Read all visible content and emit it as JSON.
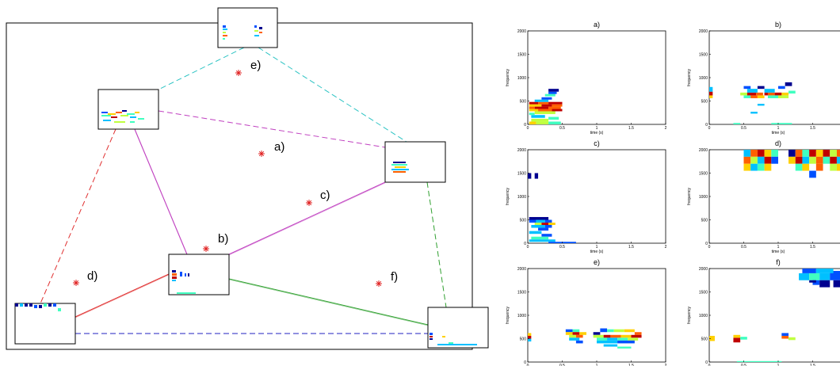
{
  "network": {
    "nodes": [
      {
        "id": "top"
      },
      {
        "id": "upper-left"
      },
      {
        "id": "right"
      },
      {
        "id": "center"
      },
      {
        "id": "lower-left"
      },
      {
        "id": "lower-right"
      }
    ],
    "edges": [
      {
        "from": "top",
        "to": "upper-left",
        "color": "#2ec4c4",
        "style": "dashed"
      },
      {
        "from": "top",
        "to": "right",
        "color": "#2ec4c4",
        "style": "dashed"
      },
      {
        "from": "upper-left",
        "to": "right",
        "color": "#c040c0",
        "style": "dashed"
      },
      {
        "from": "upper-left",
        "to": "lower-left",
        "color": "#e03030",
        "style": "dashed"
      },
      {
        "from": "upper-left",
        "to": "center",
        "color": "#c040c0",
        "style": "solid"
      },
      {
        "from": "right",
        "to": "center",
        "color": "#c040c0",
        "style": "solid"
      },
      {
        "from": "right",
        "to": "lower-right",
        "color": "#30a030",
        "style": "dashed"
      },
      {
        "from": "lower-left",
        "to": "center",
        "color": "#e03030",
        "style": "solid"
      },
      {
        "from": "center",
        "to": "lower-right",
        "color": "#30a030",
        "style": "solid"
      },
      {
        "from": "lower-left",
        "to": "lower-right",
        "color": "#2020c0",
        "style": "dashed"
      }
    ],
    "star_labels": [
      {
        "label": "e)"
      },
      {
        "label": "a)"
      },
      {
        "label": "c)"
      },
      {
        "label": "b)"
      },
      {
        "label": "d)"
      },
      {
        "label": "f)"
      }
    ]
  },
  "spectrograms": {
    "ylabel": "frequency",
    "xlabel": "time (s)",
    "xticks": [
      "0",
      "0.5",
      "1",
      "1.5",
      "2"
    ],
    "yticks": [
      "0",
      "500",
      "1000",
      "1500",
      "2000"
    ],
    "panels": [
      {
        "title": "a)"
      },
      {
        "title": "b)"
      },
      {
        "title": "c)"
      },
      {
        "title": "d)"
      },
      {
        "title": "e)"
      },
      {
        "title": "f)"
      }
    ]
  },
  "colors": {
    "star": "#e02020",
    "frame": "#000000"
  }
}
